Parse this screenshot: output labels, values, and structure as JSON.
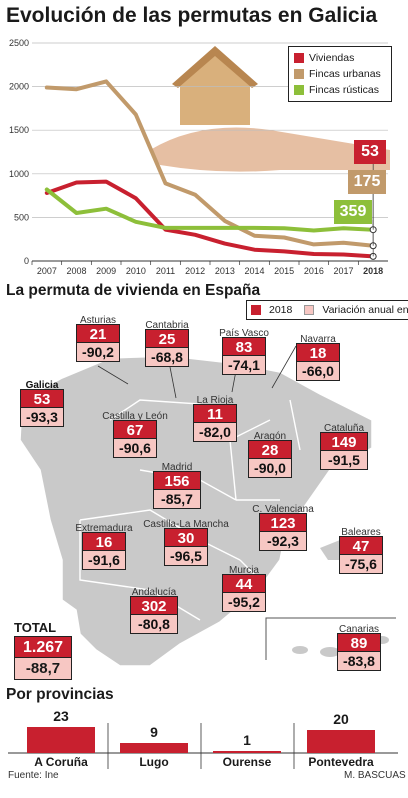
{
  "title": "Evolución de las permutas en Galicia",
  "chart_data": {
    "type": "line",
    "x": [
      "2007",
      "2008",
      "2009",
      "2010",
      "2011",
      "2012",
      "2013",
      "2014",
      "2015",
      "2016",
      "2017",
      "2018"
    ],
    "ylim": [
      0,
      2500
    ],
    "yticks": [
      "0",
      "500",
      "1000",
      "1500",
      "2000",
      "2500"
    ],
    "series": [
      {
        "name": "Viviendas",
        "color": "#c8202f",
        "values": [
          780,
          900,
          910,
          720,
          360,
          300,
          200,
          130,
          110,
          80,
          75,
          53
        ]
      },
      {
        "name": "Fincas urbanas",
        "color": "#c19a6b",
        "values": [
          1990,
          1970,
          2060,
          1680,
          890,
          760,
          460,
          290,
          270,
          190,
          210,
          175
        ]
      },
      {
        "name": "Fincas rústicas",
        "color": "#8dbf3a",
        "values": [
          820,
          550,
          600,
          450,
          380,
          380,
          380,
          380,
          375,
          350,
          375,
          359
        ]
      }
    ],
    "end_labels": [
      "53",
      "175",
      "359"
    ],
    "highlight_x": "2018"
  },
  "section_spain": {
    "title": "La permuta de vivienda en España",
    "legend": [
      "2018",
      "Variación anual en %"
    ],
    "regions": [
      {
        "name": "Asturias",
        "value": "21",
        "pct": "-90,2"
      },
      {
        "name": "Cantabria",
        "value": "25",
        "pct": "-68,8"
      },
      {
        "name": "País Vasco",
        "value": "83",
        "pct": "-74,1"
      },
      {
        "name": "Navarra",
        "value": "18",
        "pct": "-66,0"
      },
      {
        "name": "Galicia",
        "value": "53",
        "pct": "-93,3"
      },
      {
        "name": "Castilla y León",
        "value": "67",
        "pct": "-90,6"
      },
      {
        "name": "La Rioja",
        "value": "11",
        "pct": "-82,0"
      },
      {
        "name": "Aragón",
        "value": "28",
        "pct": "-90,0"
      },
      {
        "name": "Cataluña",
        "value": "149",
        "pct": "-91,5"
      },
      {
        "name": "Madrid",
        "value": "156",
        "pct": "-85,7"
      },
      {
        "name": "C. Valenciana",
        "value": "123",
        "pct": "-92,3"
      },
      {
        "name": "Extremadura",
        "value": "16",
        "pct": "-91,6"
      },
      {
        "name": "Castilla-La Mancha",
        "value": "30",
        "pct": "-96,5"
      },
      {
        "name": "Baleares",
        "value": "47",
        "pct": "-75,6"
      },
      {
        "name": "Murcia",
        "value": "44",
        "pct": "-95,2"
      },
      {
        "name": "Andalucía",
        "value": "302",
        "pct": "-80,8"
      },
      {
        "name": "Canarias",
        "value": "89",
        "pct": "-83,8"
      }
    ],
    "total": {
      "label": "TOTAL",
      "value": "1.267",
      "pct": "-88,7"
    }
  },
  "section_prov": {
    "title": "Por provincias",
    "items": [
      {
        "name": "A Coruña",
        "value": 23,
        "label": "23"
      },
      {
        "name": "Lugo",
        "value": 9,
        "label": "9"
      },
      {
        "name": "Ourense",
        "value": 1,
        "label": "1"
      },
      {
        "name": "Pontevedra",
        "value": 20,
        "label": "20"
      }
    ]
  },
  "footer": {
    "source": "Fuente: Ine",
    "author": "M. BASCUAS"
  }
}
